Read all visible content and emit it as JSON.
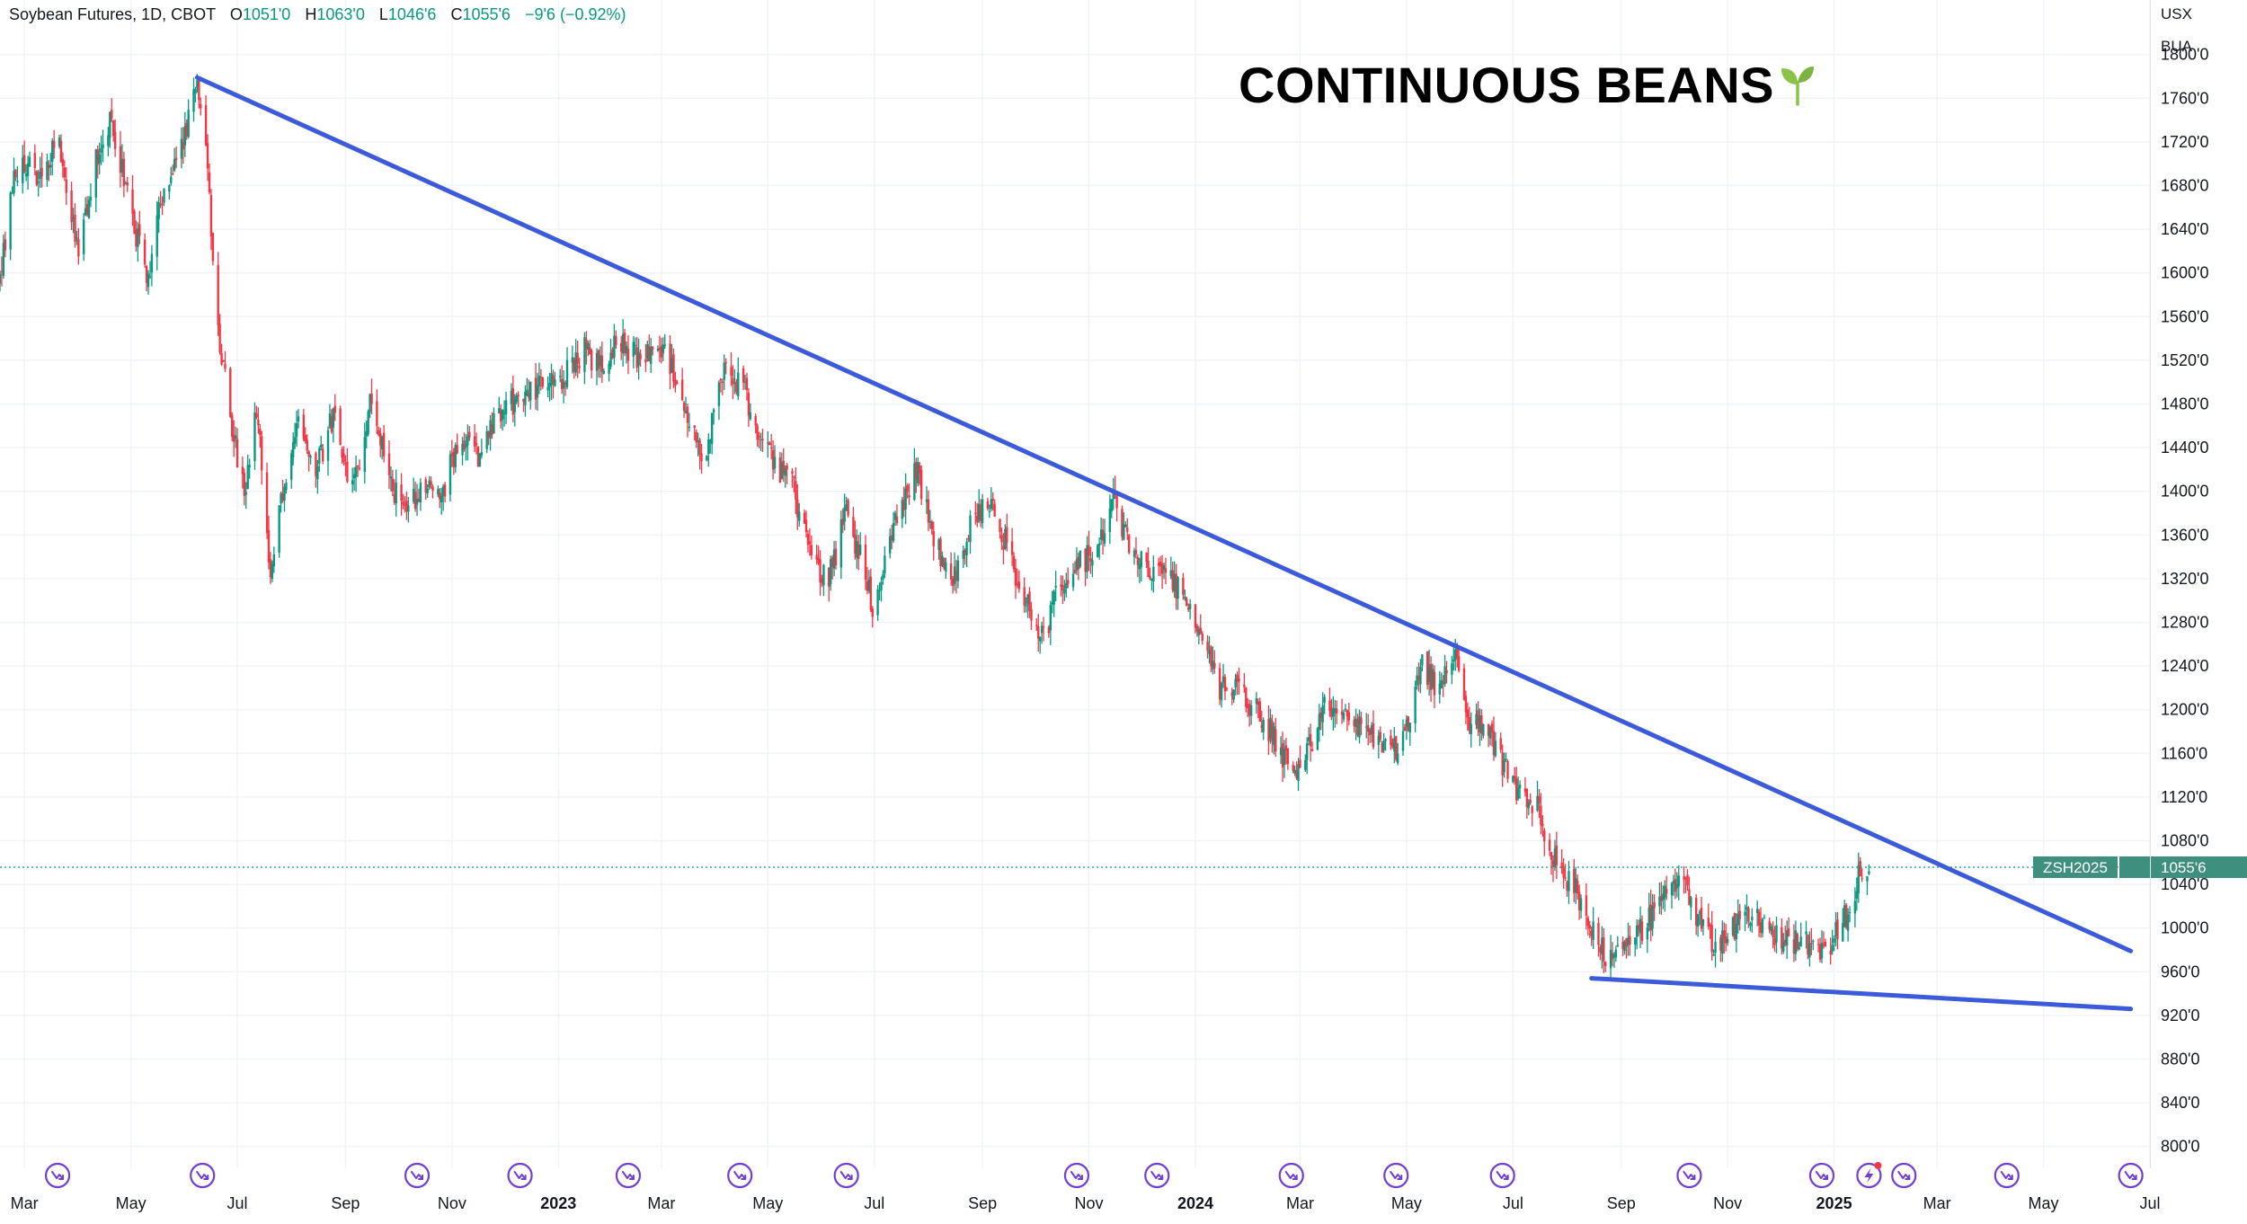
{
  "legend": {
    "symbol": "Soybean Futures, 1D, CBOT",
    "open_label": "O",
    "open": "1051'0",
    "high_label": "H",
    "high": "1063'0",
    "low_label": "L",
    "low": "1046'6",
    "close_label": "C",
    "close": "1055'6",
    "change": "−9'6 (−0.92%)"
  },
  "title": "CONTINUOUS BEANS",
  "title_icon": "seedling-icon",
  "axis_currency": "USX",
  "axis_unit": "BUA",
  "price_tag": {
    "symbol": "ZSH2025",
    "value": "1055'6"
  },
  "colors": {
    "up": "#089981",
    "down": "#f23645",
    "trendline": "#3b5bdb",
    "grid": "#f0f3fa",
    "tag_bg": "#3f8f7e",
    "event_icon": "#6f3fd6",
    "title_icon": "#8bc34a"
  },
  "chart_data": {
    "type": "candlestick",
    "title": "CONTINUOUS BEANS",
    "x_range": [
      "2022-02-15",
      "2025-07-01"
    ],
    "y_range": [
      780,
      1850
    ],
    "y_ticks": [
      800,
      840,
      880,
      920,
      960,
      1000,
      1040,
      1080,
      1120,
      1160,
      1200,
      1240,
      1280,
      1320,
      1360,
      1400,
      1440,
      1480,
      1520,
      1560,
      1600,
      1640,
      1680,
      1720,
      1760,
      1800
    ],
    "y_tick_labels": [
      "800'0",
      "840'0",
      "880'0",
      "920'0",
      "960'0",
      "1000'0",
      "1040'0",
      "1080'0",
      "1120'0",
      "1160'0",
      "1200'0",
      "1240'0",
      "1280'0",
      "1320'0",
      "1360'0",
      "1400'0",
      "1440'0",
      "1480'0",
      "1520'0",
      "1560'0",
      "1600'0",
      "1640'0",
      "1680'0",
      "1720'0",
      "1760'0",
      "1800'0"
    ],
    "x_ticks": [
      {
        "date": "2022-03-01",
        "label": "Mar",
        "bold": false
      },
      {
        "date": "2022-05-01",
        "label": "May",
        "bold": false
      },
      {
        "date": "2022-07-01",
        "label": "Jul",
        "bold": false
      },
      {
        "date": "2022-09-01",
        "label": "Sep",
        "bold": false
      },
      {
        "date": "2022-11-01",
        "label": "Nov",
        "bold": false
      },
      {
        "date": "2023-01-01",
        "label": "2023",
        "bold": true
      },
      {
        "date": "2023-03-01",
        "label": "Mar",
        "bold": false
      },
      {
        "date": "2023-05-01",
        "label": "May",
        "bold": false
      },
      {
        "date": "2023-07-01",
        "label": "Jul",
        "bold": false
      },
      {
        "date": "2023-09-01",
        "label": "Sep",
        "bold": false
      },
      {
        "date": "2023-11-01",
        "label": "Nov",
        "bold": false
      },
      {
        "date": "2024-01-01",
        "label": "2024",
        "bold": true
      },
      {
        "date": "2024-03-01",
        "label": "Mar",
        "bold": false
      },
      {
        "date": "2024-05-01",
        "label": "May",
        "bold": false
      },
      {
        "date": "2024-07-01",
        "label": "Jul",
        "bold": false
      },
      {
        "date": "2024-09-01",
        "label": "Sep",
        "bold": false
      },
      {
        "date": "2024-11-01",
        "label": "Nov",
        "bold": false
      },
      {
        "date": "2025-01-01",
        "label": "2025",
        "bold": true
      },
      {
        "date": "2025-03-01",
        "label": "Mar",
        "bold": false
      },
      {
        "date": "2025-05-01",
        "label": "May",
        "bold": false
      },
      {
        "date": "2025-07-01",
        "label": "Jul",
        "bold": false
      }
    ],
    "price_path": [
      [
        "2022-02-15",
        1590
      ],
      [
        "2022-02-22",
        1680
      ],
      [
        "2022-03-01",
        1700
      ],
      [
        "2022-03-10",
        1680
      ],
      [
        "2022-03-20",
        1730
      ],
      [
        "2022-04-01",
        1620
      ],
      [
        "2022-04-10",
        1700
      ],
      [
        "2022-04-20",
        1740
      ],
      [
        "2022-05-01",
        1660
      ],
      [
        "2022-05-10",
        1590
      ],
      [
        "2022-05-20",
        1680
      ],
      [
        "2022-06-01",
        1730
      ],
      [
        "2022-06-08",
        1770
      ],
      [
        "2022-06-14",
        1695
      ],
      [
        "2022-06-20",
        1545
      ],
      [
        "2022-06-27",
        1470
      ],
      [
        "2022-07-05",
        1395
      ],
      [
        "2022-07-12",
        1480
      ],
      [
        "2022-07-20",
        1320
      ],
      [
        "2022-07-28",
        1410
      ],
      [
        "2022-08-05",
        1470
      ],
      [
        "2022-08-15",
        1420
      ],
      [
        "2022-08-25",
        1470
      ],
      [
        "2022-09-05",
        1400
      ],
      [
        "2022-09-15",
        1480
      ],
      [
        "2022-09-25",
        1420
      ],
      [
        "2022-10-05",
        1375
      ],
      [
        "2022-10-15",
        1410
      ],
      [
        "2022-10-25",
        1390
      ],
      [
        "2022-11-05",
        1450
      ],
      [
        "2022-11-15",
        1430
      ],
      [
        "2022-11-25",
        1460
      ],
      [
        "2022-12-05",
        1480
      ],
      [
        "2022-12-15",
        1490
      ],
      [
        "2022-12-25",
        1500
      ],
      [
        "2023-01-05",
        1505
      ],
      [
        "2023-01-15",
        1530
      ],
      [
        "2023-01-25",
        1515
      ],
      [
        "2023-02-05",
        1540
      ],
      [
        "2023-02-15",
        1520
      ],
      [
        "2023-02-25",
        1535
      ],
      [
        "2023-03-05",
        1520
      ],
      [
        "2023-03-15",
        1480
      ],
      [
        "2023-03-25",
        1430
      ],
      [
        "2023-04-05",
        1510
      ],
      [
        "2023-04-15",
        1500
      ],
      [
        "2023-04-25",
        1460
      ],
      [
        "2023-05-05",
        1420
      ],
      [
        "2023-05-15",
        1410
      ],
      [
        "2023-05-25",
        1340
      ],
      [
        "2023-06-05",
        1320
      ],
      [
        "2023-06-15",
        1380
      ],
      [
        "2023-06-25",
        1330
      ],
      [
        "2023-07-01",
        1290
      ],
      [
        "2023-07-10",
        1360
      ],
      [
        "2023-07-20",
        1400
      ],
      [
        "2023-07-25",
        1420
      ],
      [
        "2023-08-05",
        1350
      ],
      [
        "2023-08-15",
        1320
      ],
      [
        "2023-08-25",
        1370
      ],
      [
        "2023-09-05",
        1390
      ],
      [
        "2023-09-15",
        1350
      ],
      [
        "2023-09-25",
        1300
      ],
      [
        "2023-10-05",
        1265
      ],
      [
        "2023-10-15",
        1310
      ],
      [
        "2023-10-25",
        1330
      ],
      [
        "2023-11-05",
        1350
      ],
      [
        "2023-11-15",
        1390
      ],
      [
        "2023-11-25",
        1345
      ],
      [
        "2023-12-05",
        1330
      ],
      [
        "2023-12-15",
        1320
      ],
      [
        "2023-12-25",
        1310
      ],
      [
        "2024-01-05",
        1270
      ],
      [
        "2024-01-15",
        1220
      ],
      [
        "2024-01-25",
        1220
      ],
      [
        "2024-02-05",
        1200
      ],
      [
        "2024-02-15",
        1175
      ],
      [
        "2024-02-25",
        1145
      ],
      [
        "2024-03-05",
        1160
      ],
      [
        "2024-03-15",
        1200
      ],
      [
        "2024-03-25",
        1200
      ],
      [
        "2024-04-05",
        1180
      ],
      [
        "2024-04-15",
        1170
      ],
      [
        "2024-04-25",
        1160
      ],
      [
        "2024-05-05",
        1205
      ],
      [
        "2024-05-10",
        1240
      ],
      [
        "2024-05-20",
        1220
      ],
      [
        "2024-05-28",
        1250
      ],
      [
        "2024-06-05",
        1195
      ],
      [
        "2024-06-15",
        1185
      ],
      [
        "2024-06-25",
        1150
      ],
      [
        "2024-07-05",
        1120
      ],
      [
        "2024-07-15",
        1110
      ],
      [
        "2024-07-25",
        1060
      ],
      [
        "2024-08-05",
        1040
      ],
      [
        "2024-08-15",
        1000
      ],
      [
        "2024-08-25",
        965
      ],
      [
        "2024-09-05",
        990
      ],
      [
        "2024-09-15",
        1000
      ],
      [
        "2024-09-25",
        1030
      ],
      [
        "2024-10-05",
        1050
      ],
      [
        "2024-10-15",
        1010
      ],
      [
        "2024-10-25",
        980
      ],
      [
        "2024-11-05",
        1000
      ],
      [
        "2024-11-15",
        1010
      ],
      [
        "2024-11-25",
        995
      ],
      [
        "2024-12-05",
        985
      ],
      [
        "2024-12-15",
        990
      ],
      [
        "2024-12-25",
        975
      ],
      [
        "2025-01-05",
        1000
      ],
      [
        "2025-01-12",
        1030
      ],
      [
        "2025-01-16",
        1050
      ],
      [
        "2025-01-21",
        1055.75
      ]
    ],
    "trendlines": [
      {
        "from": [
          "2022-06-08",
          1779
        ],
        "to": [
          "2025-06-20",
          979
        ]
      },
      {
        "from": [
          "2024-08-15",
          954
        ],
        "to": [
          "2025-06-20",
          926
        ]
      }
    ],
    "last_price": 1055.75,
    "event_markers": [
      "2022-03-20",
      "2022-06-11",
      "2022-10-12",
      "2022-12-10",
      "2023-02-10",
      "2023-04-15",
      "2023-06-15",
      "2023-10-25",
      "2023-12-10",
      "2024-02-25",
      "2024-04-25",
      "2024-06-25",
      "2024-10-10",
      "2024-12-25",
      "2025-01-21",
      "2025-02-10",
      "2025-04-10",
      "2025-06-20"
    ],
    "event_alert_marker": "2025-01-21"
  }
}
